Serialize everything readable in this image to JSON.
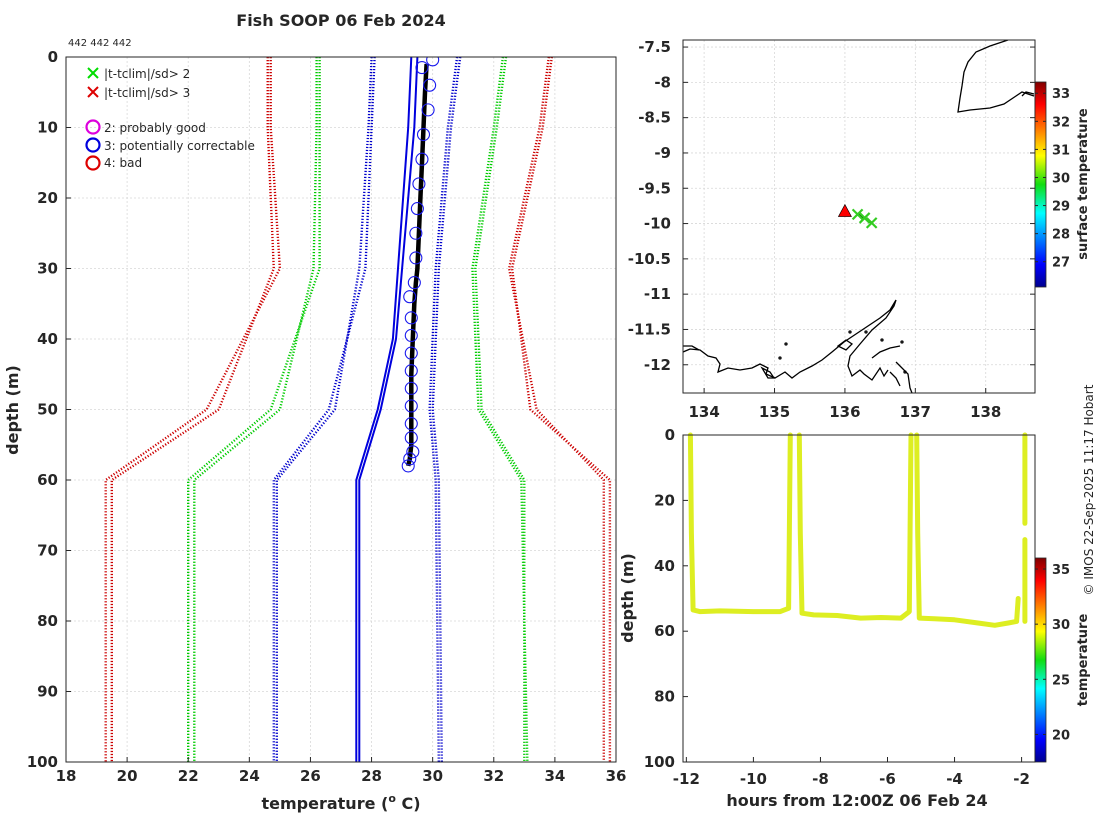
{
  "header": {
    "title": "Fish SOOP 06 Feb 2024",
    "subtitle": "442 442 442",
    "credit": "© IMOS 22-Sep-2025 11:17 Hobart"
  },
  "legend": {
    "items": [
      {
        "label": "|t-tclim|/sd> 2",
        "marker": "x",
        "color": "#00dd00"
      },
      {
        "label": "|t-tclim|/sd> 3",
        "marker": "x",
        "color": "#dd0000"
      },
      {
        "label": "2: probably good",
        "marker": "o",
        "color": "#dd00dd"
      },
      {
        "label": "3: potentially correctable",
        "marker": "o",
        "color": "#0000dd"
      },
      {
        "label": "4: bad",
        "marker": "o",
        "color": "#dd0000"
      }
    ]
  },
  "chart_data": [
    {
      "type": "line",
      "name": "profile",
      "xlabel": "temperature (",
      "xlabel_sup": "o",
      "xlabel_tail": " C)",
      "ylabel": "depth (m)",
      "xlim": [
        18,
        36
      ],
      "ylim": [
        0,
        100
      ],
      "y_reversed": true,
      "xticks": [
        18,
        20,
        22,
        24,
        26,
        28,
        30,
        32,
        34,
        36
      ],
      "yticks": [
        0,
        10,
        20,
        30,
        40,
        50,
        60,
        70,
        80,
        90,
        100
      ],
      "envelope_depths": [
        0,
        10,
        30,
        50,
        60,
        100
      ],
      "series": [
        {
          "name": "clim -3sd a",
          "style": "dotted",
          "color": "#cc0000",
          "values": [
            24.7,
            24.7,
            25.0,
            22.6,
            19.3,
            19.3
          ]
        },
        {
          "name": "clim -3sd b",
          "style": "dotted",
          "color": "#cc0000",
          "values": [
            24.6,
            24.6,
            24.8,
            23.0,
            19.5,
            19.5
          ]
        },
        {
          "name": "clim -2sd a",
          "style": "dotted",
          "color": "#00cc00",
          "values": [
            26.3,
            26.3,
            26.3,
            24.7,
            22.0,
            22.0
          ]
        },
        {
          "name": "clim -2sd b",
          "style": "dotted",
          "color": "#00cc00",
          "values": [
            26.2,
            26.2,
            26.1,
            25.0,
            22.2,
            22.2
          ]
        },
        {
          "name": "clim -1sd a",
          "style": "dotted",
          "color": "#0000cc",
          "values": [
            28.1,
            28.0,
            27.8,
            26.6,
            24.8,
            24.8
          ]
        },
        {
          "name": "clim -1sd b",
          "style": "dotted",
          "color": "#0000cc",
          "values": [
            28.0,
            27.9,
            27.6,
            26.8,
            24.9,
            24.9
          ]
        },
        {
          "name": "clim +1sd a",
          "style": "dotted",
          "color": "#0000cc",
          "values": [
            30.9,
            30.6,
            30.2,
            30.0,
            30.2,
            30.3
          ]
        },
        {
          "name": "clim +1sd b",
          "style": "dotted",
          "color": "#0000cc",
          "values": [
            30.8,
            30.5,
            30.1,
            29.9,
            30.1,
            30.2
          ]
        },
        {
          "name": "clim +2sd a",
          "style": "dotted",
          "color": "#00cc00",
          "values": [
            32.4,
            32.1,
            31.4,
            31.6,
            33.0,
            33.0
          ]
        },
        {
          "name": "clim +2sd b",
          "style": "dotted",
          "color": "#00cc00",
          "values": [
            32.3,
            32.0,
            31.3,
            31.5,
            32.9,
            33.1
          ]
        },
        {
          "name": "clim +3sd a",
          "style": "dotted",
          "color": "#cc0000",
          "values": [
            33.9,
            33.6,
            32.6,
            33.2,
            35.8,
            35.8
          ]
        },
        {
          "name": "clim +3sd b",
          "style": "dotted",
          "color": "#cc0000",
          "values": [
            33.8,
            33.5,
            32.5,
            33.4,
            35.6,
            35.6
          ]
        },
        {
          "name": "mean a",
          "style": "solid",
          "color": "#0000dd",
          "depths": [
            0,
            10,
            40,
            50,
            60,
            100
          ],
          "values": [
            29.3,
            29.2,
            28.7,
            28.2,
            27.5,
            27.5
          ]
        },
        {
          "name": "mean b",
          "style": "solid",
          "color": "#0000dd",
          "depths": [
            0,
            10,
            40,
            50,
            60,
            100
          ],
          "values": [
            29.5,
            29.4,
            28.8,
            28.3,
            27.6,
            27.6
          ]
        }
      ],
      "profile": {
        "color": "#000000",
        "depths": [
          1,
          5,
          10,
          15,
          20,
          25,
          30,
          32,
          35,
          40,
          45,
          50,
          55,
          57,
          58
        ],
        "temps": [
          29.8,
          29.75,
          29.7,
          29.65,
          29.6,
          29.55,
          29.5,
          29.45,
          29.4,
          29.35,
          29.3,
          29.3,
          29.3,
          29.25,
          29.2
        ]
      },
      "flag3_markers": {
        "color": "#1a1aee",
        "depths": [
          0.4,
          1.5,
          4,
          7.5,
          11,
          14.5,
          18,
          21.5,
          25,
          28.5,
          32,
          34,
          37,
          39.5,
          42,
          44.5,
          47,
          49.5,
          52,
          54,
          56,
          57,
          58
        ],
        "temps": [
          30.0,
          29.65,
          29.9,
          29.85,
          29.7,
          29.65,
          29.55,
          29.5,
          29.45,
          29.45,
          29.4,
          29.25,
          29.3,
          29.3,
          29.3,
          29.3,
          29.3,
          29.3,
          29.3,
          29.3,
          29.35,
          29.25,
          29.2
        ]
      }
    },
    {
      "type": "scatter",
      "name": "map",
      "xlim": [
        133.7,
        138.7
      ],
      "ylim": [
        -12.4,
        -7.4
      ],
      "xticks": [
        134,
        135,
        136,
        137,
        138
      ],
      "xtick_labels": [
        "134",
        "135",
        "136",
        "137",
        "138"
      ],
      "yticks": [
        -7.5,
        -8,
        -8.5,
        -9,
        -9.5,
        -10,
        -10.5,
        -11,
        -11.5,
        -12
      ],
      "ytick_labels": [
        "-7.5",
        "-8",
        "-8.5",
        "-9",
        "-9.5",
        "-10",
        "-10.5",
        "-11",
        "-11.5",
        "-12"
      ],
      "colorbar": {
        "label": "surface temperature",
        "min": 26.1,
        "max": 33.4,
        "ticks": [
          27,
          28,
          29,
          30,
          31,
          32,
          33
        ]
      },
      "current_position": {
        "lon": 136.0,
        "lat": -9.83,
        "marker": "triangle",
        "color": "#ff0000"
      },
      "track": {
        "lons": [
          136.18,
          136.28,
          136.38
        ],
        "lats": [
          -9.87,
          -9.92,
          -9.99
        ],
        "color": "#33cc22"
      }
    },
    {
      "type": "scatter",
      "name": "time-depth",
      "xlabel": "hours from 12:00Z 06 Feb 24",
      "ylabel": "depth (m)",
      "xlim": [
        -12.1,
        -1.6
      ],
      "ylim": [
        0,
        100
      ],
      "y_reversed": true,
      "xticks": [
        -12,
        -10,
        -8,
        -6,
        -4,
        -2
      ],
      "xtick_labels": [
        "-12",
        "-10",
        "-8",
        "-6",
        "-4",
        "-2"
      ],
      "yticks": [
        0,
        20,
        40,
        60,
        80,
        100
      ],
      "point_color": "#ddee22",
      "colorbar": {
        "label": "temperature",
        "min": 17.5,
        "max": 36,
        "ticks": [
          20,
          25,
          30,
          35
        ]
      },
      "segments": [
        {
          "t": [
            -11.88,
            -11.85,
            -11.8,
            -11.6,
            -11.0,
            -10.0,
            -9.2,
            -8.95,
            -8.9
          ],
          "d": [
            0,
            30,
            53.5,
            54,
            53.8,
            54,
            54,
            53,
            0
          ]
        },
        {
          "t": [
            -8.63,
            -8.6,
            -8.55,
            -8.2,
            -7.5,
            -6.8,
            -6.2,
            -5.6,
            -5.35,
            -5.3
          ],
          "d": [
            0,
            30,
            54.5,
            55,
            55.2,
            56,
            55.8,
            56,
            54,
            0
          ]
        },
        {
          "t": [
            -5.13,
            -5.1,
            -5.05,
            -4.6,
            -4.0,
            -3.3,
            -2.8,
            -2.4,
            -2.15,
            -2.1
          ],
          "d": [
            0,
            30,
            56,
            56.2,
            56.5,
            57.5,
            58.2,
            57.5,
            57,
            50
          ]
        },
        {
          "t": [
            -1.9,
            -1.9
          ],
          "d": [
            0,
            27
          ]
        },
        {
          "t": [
            -1.9,
            -1.9
          ],
          "d": [
            32,
            57
          ]
        }
      ]
    }
  ]
}
